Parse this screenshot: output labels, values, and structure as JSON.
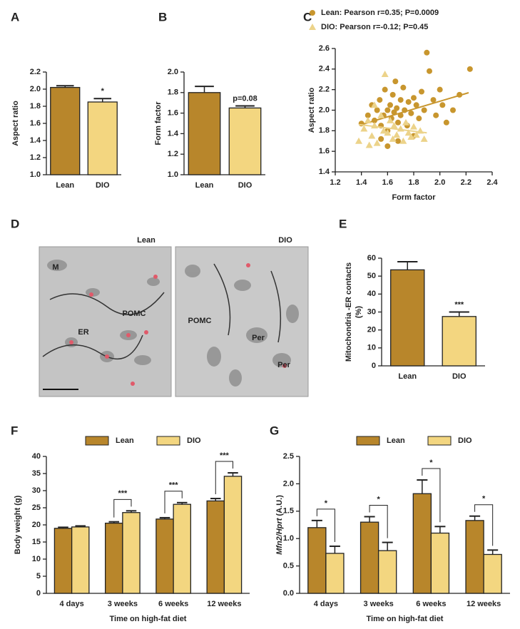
{
  "chart_data": [
    {
      "type": "bar",
      "panel": "A",
      "ylabel": "Aspect ratio",
      "categories": [
        "Lean",
        "DIO"
      ],
      "values": [
        2.02,
        1.85
      ],
      "errors": [
        0.02,
        0.04
      ],
      "colors": [
        "#b8862b",
        "#f3d680"
      ],
      "ylim": [
        1.0,
        2.2
      ],
      "yticks": [
        {
          "value": 1,
          "label": "1.0"
        },
        1.2,
        1.4,
        1.6,
        1.8,
        {
          "value": 2,
          "label": "2.0"
        },
        2.2
      ],
      "annotations": [
        {
          "text": "*",
          "category": "DIO"
        }
      ]
    },
    {
      "type": "bar",
      "panel": "B",
      "ylabel": "Form factor",
      "categories": [
        "Lean",
        "DIO"
      ],
      "values": [
        1.8,
        1.65
      ],
      "errors": [
        0.06,
        0.02
      ],
      "colors": [
        "#b8862b",
        "#f3d680"
      ],
      "ylim": [
        1.0,
        2.0
      ],
      "yticks": [
        {
          "value": 1,
          "label": "1.0"
        },
        1.2,
        1.4,
        1.6,
        1.8,
        {
          "value": 2,
          "label": "2.0"
        }
      ],
      "annotations": [
        {
          "text": "p=0.08",
          "category": "DIO"
        }
      ]
    },
    {
      "type": "scatter",
      "panel": "C",
      "xlabel": "Form factor",
      "ylabel": "Aspect ratio",
      "xlim": [
        1.2,
        2.4
      ],
      "xticks": [
        1.2,
        1.4,
        1.6,
        1.8,
        {
          "value": 2,
          "label": "2.0"
        },
        2.2,
        2.4
      ],
      "ylim": [
        1.4,
        2.6
      ],
      "yticks": [
        1.4,
        1.6,
        1.8,
        {
          "value": 2,
          "label": "2.0"
        },
        2.2,
        2.4,
        2.6
      ],
      "series": [
        {
          "name": "Lean: Pearson r=0.35; P=0.0009",
          "color": "#c8962e",
          "marker": "circle",
          "x": [
            1.4,
            1.45,
            1.48,
            1.5,
            1.52,
            1.54,
            1.55,
            1.57,
            1.58,
            1.6,
            1.6,
            1.62,
            1.63,
            1.64,
            1.65,
            1.66,
            1.67,
            1.68,
            1.7,
            1.7,
            1.72,
            1.73,
            1.75,
            1.76,
            1.78,
            1.8,
            1.8,
            1.82,
            1.84,
            1.86,
            1.88,
            1.9,
            1.92,
            1.95,
            1.97,
            2.0,
            2.02,
            2.05,
            2.1,
            2.15,
            2.23,
            1.6,
            1.68,
            1.55
          ],
          "y": [
            1.87,
            1.95,
            2.05,
            1.9,
            2.0,
            2.1,
            1.85,
            1.95,
            2.2,
            2.0,
            1.8,
            2.05,
            1.92,
            2.15,
            1.98,
            2.28,
            2.02,
            1.88,
            2.1,
            1.95,
            2.22,
            2.0,
            1.85,
            2.08,
            1.97,
            2.12,
            1.75,
            2.05,
            1.92,
            2.18,
            2.0,
            2.56,
            2.38,
            2.1,
            1.95,
            2.2,
            2.05,
            1.88,
            2.0,
            2.15,
            2.4,
            1.65,
            1.7,
            1.72
          ],
          "trend": {
            "x": [
              1.4,
              2.22
            ],
            "y": [
              1.86,
              2.17
            ]
          }
        },
        {
          "name": "DIO: Pearson r=-0.12; P=0.45",
          "color": "#ecd38a",
          "marker": "triangle",
          "x": [
            1.38,
            1.42,
            1.45,
            1.48,
            1.5,
            1.52,
            1.55,
            1.57,
            1.58,
            1.6,
            1.62,
            1.64,
            1.65,
            1.67,
            1.7,
            1.72,
            1.74,
            1.76,
            1.78,
            1.8,
            1.82,
            1.85,
            1.88,
            1.5,
            1.46
          ],
          "y": [
            1.7,
            1.82,
            1.9,
            1.75,
            1.85,
            1.68,
            1.95,
            1.8,
            2.35,
            1.78,
            1.9,
            1.72,
            1.85,
            1.76,
            1.82,
            1.7,
            1.88,
            1.78,
            1.74,
            1.84,
            1.76,
            1.8,
            1.72,
            2.05,
            1.66
          ],
          "trend": {
            "x": [
              1.38,
              1.9
            ],
            "y": [
              1.86,
              1.78
            ]
          }
        }
      ]
    },
    {
      "type": "bar",
      "panel": "E",
      "ylabel": [
        "Mitochondria -ER contacts",
        "(%)"
      ],
      "categories": [
        "Lean",
        "DIO"
      ],
      "values": [
        53.5,
        27.5
      ],
      "errors": [
        4.5,
        2.5
      ],
      "colors": [
        "#b8862b",
        "#f3d680"
      ],
      "ylim": [
        0,
        60
      ],
      "yticks": [
        0,
        10,
        20,
        30,
        40,
        50,
        60
      ],
      "annotations": [
        {
          "text": "***",
          "category": "DIO"
        }
      ]
    },
    {
      "type": "bar",
      "panel": "F",
      "ylabel": "Body weight (g)",
      "xlabel": "Time on high-fat diet",
      "categories": [
        "4 days",
        "3 weeks",
        "6 weeks",
        "12 weeks"
      ],
      "series": [
        {
          "name": "Lean",
          "color": "#b8862b",
          "values": [
            19.0,
            20.5,
            21.7,
            27.0
          ],
          "errors": [
            0.3,
            0.4,
            0.4,
            0.7
          ]
        },
        {
          "name": "DIO",
          "color": "#f3d680",
          "values": [
            19.4,
            23.6,
            26.0,
            34.2
          ],
          "errors": [
            0.3,
            0.5,
            0.5,
            1.0
          ]
        }
      ],
      "ylim": [
        0,
        40
      ],
      "yticks": [
        0,
        5,
        10,
        15,
        20,
        25,
        30,
        35,
        40
      ],
      "annotations": [
        {
          "text": "***",
          "category": "3 weeks"
        },
        {
          "text": "***",
          "category": "6 weeks"
        },
        {
          "text": "***",
          "category": "12 weeks"
        }
      ]
    },
    {
      "type": "bar",
      "panel": "G",
      "ylabel": [
        [
          "Mfn2/Hprt",
          " (A.U.)"
        ]
      ],
      "xlabel": "Time on high-fat diet",
      "categories": [
        "4 days",
        "3 weeks",
        "6 weeks",
        "12 weeks"
      ],
      "series": [
        {
          "name": "Lean",
          "color": "#b8862b",
          "values": [
            1.2,
            1.3,
            1.82,
            1.33
          ],
          "errors": [
            0.13,
            0.1,
            0.25,
            0.08
          ]
        },
        {
          "name": "DIO",
          "color": "#f3d680",
          "values": [
            0.73,
            0.78,
            1.1,
            0.71
          ],
          "errors": [
            0.13,
            0.15,
            0.12,
            0.08
          ]
        }
      ],
      "ylim": [
        0,
        2.5
      ],
      "yticks": [
        {
          "value": 0,
          "label": "0.0"
        },
        0.5,
        {
          "value": 1,
          "label": "1.0"
        },
        1.5,
        {
          "value": 2,
          "label": "2.0"
        },
        2.5
      ],
      "annotations": [
        {
          "text": "*",
          "category": "4 days"
        },
        {
          "text": "*",
          "category": "3 weeks"
        },
        {
          "text": "*",
          "category": "6 weeks"
        },
        {
          "text": "*",
          "category": "12 weeks"
        }
      ]
    }
  ],
  "micrograph": {
    "panel": "D",
    "images": [
      {
        "title": "Lean",
        "labels": [
          "M",
          "POMC",
          "ER"
        ]
      },
      {
        "title": "DIO",
        "labels": [
          "POMC",
          "Per",
          "Per"
        ]
      }
    ]
  }
}
